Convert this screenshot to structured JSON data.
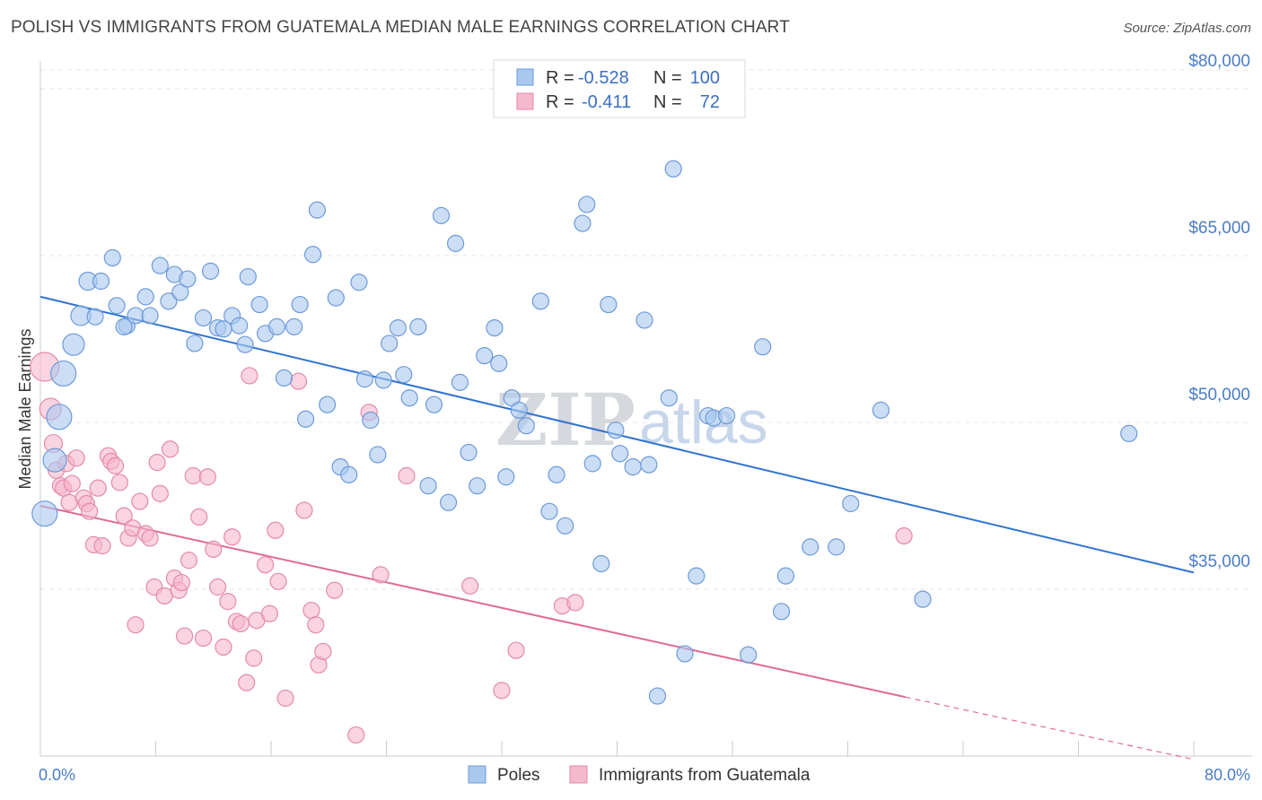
{
  "title": "POLISH VS IMMIGRANTS FROM GUATEMALA MEDIAN MALE EARNINGS CORRELATION CHART",
  "source": "Source: ZipAtlas.com",
  "watermark": {
    "zip": "ZIP",
    "atlas": "atlas"
  },
  "legend_box": [
    {
      "r_label": "R =",
      "r_value": "-0.528",
      "n_label": "N =",
      "n_value": "100",
      "color": "#a9c8f0",
      "stroke": "#6d9ad8"
    },
    {
      "r_label": "R =",
      "r_value": "-0.411",
      "n_label": "N =",
      "n_value": "72",
      "color": "#f6b8cc",
      "stroke": "#e48aa7"
    }
  ],
  "chart_data": {
    "type": "scatter",
    "title": "POLISH VS IMMIGRANTS FROM GUATEMALA MEDIAN MALE EARNINGS CORRELATION CHART",
    "xlabel": "",
    "ylabel": "Median Male Earnings",
    "xlim": [
      0,
      80
    ],
    "ylim": [
      20000,
      82500
    ],
    "y_ticks": [
      35000,
      50000,
      65000,
      80000
    ],
    "y_tick_labels": [
      "$35,000",
      "$50,000",
      "$65,000",
      "$80,000"
    ],
    "x_tick_labels": [
      "0.0%",
      "80.0%"
    ],
    "grid": true,
    "legend_position": "bottom",
    "series": [
      {
        "name": "Poles",
        "color": "#a9c8f0",
        "stroke": "#6d9ad8",
        "line_color": "#2f74d0",
        "trend": {
          "x0": 0,
          "y0": 61300,
          "x1": 80,
          "y1": 36500
        },
        "points": [
          [
            0.3,
            41800,
            14
          ],
          [
            1.0,
            46600,
            13
          ],
          [
            1.3,
            50500,
            14
          ],
          [
            1.6,
            54400,
            14
          ],
          [
            2.3,
            57000,
            12
          ],
          [
            2.8,
            59600,
            11
          ],
          [
            3.3,
            62700,
            10
          ],
          [
            4.2,
            62700,
            9
          ],
          [
            3.8,
            59500,
            9
          ],
          [
            5.0,
            64800,
            9
          ],
          [
            5.3,
            60500,
            9
          ],
          [
            6.0,
            58700,
            9
          ],
          [
            5.8,
            58600,
            9
          ],
          [
            6.6,
            59600,
            9
          ],
          [
            7.6,
            59600,
            9
          ],
          [
            7.3,
            61300,
            9
          ],
          [
            8.3,
            64100,
            9
          ],
          [
            8.9,
            60900,
            9
          ],
          [
            9.3,
            63300,
            9
          ],
          [
            9.7,
            61700,
            9
          ],
          [
            10.2,
            62900,
            9
          ],
          [
            10.7,
            57100,
            9
          ],
          [
            11.3,
            59400,
            9
          ],
          [
            11.8,
            63600,
            9
          ],
          [
            12.3,
            58500,
            9
          ],
          [
            12.7,
            58400,
            9
          ],
          [
            13.3,
            59600,
            9
          ],
          [
            13.8,
            58700,
            9
          ],
          [
            14.2,
            57000,
            9
          ],
          [
            14.4,
            63100,
            9
          ],
          [
            15.2,
            60600,
            9
          ],
          [
            15.6,
            58000,
            9
          ],
          [
            16.4,
            58600,
            9
          ],
          [
            16.9,
            54000,
            9
          ],
          [
            17.6,
            58600,
            9
          ],
          [
            18.0,
            60600,
            9
          ],
          [
            18.4,
            50300,
            9
          ],
          [
            18.9,
            65100,
            9
          ],
          [
            19.2,
            69100,
            9
          ],
          [
            19.9,
            51600,
            9
          ],
          [
            20.5,
            61200,
            9
          ],
          [
            20.8,
            46000,
            9
          ],
          [
            21.4,
            45300,
            9
          ],
          [
            22.1,
            62600,
            9
          ],
          [
            22.5,
            53900,
            9
          ],
          [
            22.9,
            50200,
            9
          ],
          [
            23.4,
            47100,
            9
          ],
          [
            23.8,
            53800,
            9
          ],
          [
            24.2,
            57100,
            9
          ],
          [
            24.8,
            58500,
            9
          ],
          [
            25.2,
            54300,
            9
          ],
          [
            25.6,
            52200,
            9
          ],
          [
            26.2,
            58600,
            9
          ],
          [
            26.9,
            44300,
            9
          ],
          [
            27.3,
            51600,
            9
          ],
          [
            27.8,
            68600,
            9
          ],
          [
            28.3,
            42800,
            9
          ],
          [
            28.8,
            66100,
            9
          ],
          [
            29.1,
            53600,
            9
          ],
          [
            29.7,
            47300,
            9
          ],
          [
            30.3,
            44300,
            9
          ],
          [
            30.8,
            56000,
            9
          ],
          [
            31.5,
            58500,
            9
          ],
          [
            31.8,
            55300,
            9
          ],
          [
            32.3,
            45100,
            9
          ],
          [
            32.7,
            52200,
            9
          ],
          [
            33.2,
            51100,
            9
          ],
          [
            33.7,
            49700,
            9
          ],
          [
            34.7,
            60900,
            9
          ],
          [
            35.3,
            42000,
            9
          ],
          [
            35.8,
            45300,
            9
          ],
          [
            36.4,
            40700,
            9
          ],
          [
            37.6,
            67900,
            9
          ],
          [
            37.9,
            69600,
            9
          ],
          [
            38.3,
            46300,
            9
          ],
          [
            38.9,
            37300,
            9
          ],
          [
            39.4,
            60600,
            9
          ],
          [
            39.9,
            49300,
            9
          ],
          [
            40.2,
            47200,
            9
          ],
          [
            41.1,
            46000,
            9
          ],
          [
            41.9,
            59200,
            9
          ],
          [
            42.2,
            46200,
            9
          ],
          [
            42.8,
            25400,
            9
          ],
          [
            43.6,
            52200,
            9
          ],
          [
            43.9,
            72800,
            9
          ],
          [
            44.7,
            29200,
            9
          ],
          [
            45.5,
            36200,
            9
          ],
          [
            46.3,
            50600,
            9
          ],
          [
            46.7,
            50400,
            9
          ],
          [
            47.6,
            50600,
            9
          ],
          [
            49.1,
            29100,
            9
          ],
          [
            50.1,
            56800,
            9
          ],
          [
            51.4,
            33000,
            9
          ],
          [
            51.7,
            36200,
            9
          ],
          [
            53.4,
            38800,
            9
          ],
          [
            55.2,
            38800,
            9
          ],
          [
            56.2,
            42700,
            9
          ],
          [
            58.3,
            51100,
            9
          ],
          [
            61.2,
            34100,
            9
          ],
          [
            75.5,
            49000,
            9
          ]
        ]
      },
      {
        "name": "Immigrants from Guatemala",
        "color": "#f6b8cc",
        "stroke": "#e48aa7",
        "line_color": "#e06a95",
        "trend": {
          "x0": 0,
          "y0": 42500,
          "x1": 60,
          "y1": 25300
        },
        "trend_dashed": {
          "x0": 60,
          "y0": 25300,
          "x1": 80,
          "y1": 19700
        },
        "points": [
          [
            0.3,
            55000,
            16
          ],
          [
            0.7,
            51200,
            12
          ],
          [
            0.9,
            48100,
            10
          ],
          [
            1.1,
            45700,
            9
          ],
          [
            1.4,
            44300,
            9
          ],
          [
            1.6,
            44100,
            9
          ],
          [
            1.8,
            46300,
            9
          ],
          [
            2.0,
            42800,
            9
          ],
          [
            2.2,
            44500,
            9
          ],
          [
            2.5,
            46800,
            9
          ],
          [
            3.0,
            43200,
            9
          ],
          [
            3.2,
            42700,
            9
          ],
          [
            3.4,
            42000,
            9
          ],
          [
            3.7,
            39000,
            9
          ],
          [
            4.0,
            44100,
            9
          ],
          [
            4.3,
            38900,
            9
          ],
          [
            4.7,
            47000,
            9
          ],
          [
            4.9,
            46500,
            9
          ],
          [
            5.2,
            46100,
            9
          ],
          [
            5.5,
            44600,
            9
          ],
          [
            5.8,
            41600,
            9
          ],
          [
            6.1,
            39600,
            9
          ],
          [
            6.4,
            40500,
            9
          ],
          [
            6.6,
            31800,
            9
          ],
          [
            6.9,
            42900,
            9
          ],
          [
            7.3,
            40000,
            9
          ],
          [
            7.6,
            39600,
            9
          ],
          [
            7.9,
            35200,
            9
          ],
          [
            8.1,
            46400,
            9
          ],
          [
            8.3,
            43600,
            9
          ],
          [
            8.6,
            34400,
            9
          ],
          [
            9.0,
            47600,
            9
          ],
          [
            9.3,
            36000,
            9
          ],
          [
            9.6,
            34900,
            9
          ],
          [
            9.8,
            35600,
            9
          ],
          [
            10.0,
            30800,
            9
          ],
          [
            10.3,
            37600,
            9
          ],
          [
            10.6,
            45200,
            9
          ],
          [
            11.0,
            41500,
            9
          ],
          [
            11.3,
            30600,
            9
          ],
          [
            11.6,
            45100,
            9
          ],
          [
            12.0,
            38600,
            9
          ],
          [
            12.3,
            35200,
            9
          ],
          [
            12.7,
            29800,
            9
          ],
          [
            13.0,
            33900,
            9
          ],
          [
            13.3,
            39700,
            9
          ],
          [
            13.6,
            32100,
            9
          ],
          [
            13.9,
            31900,
            9
          ],
          [
            14.3,
            26600,
            9
          ],
          [
            14.5,
            54200,
            9
          ],
          [
            14.8,
            28800,
            9
          ],
          [
            15.0,
            32200,
            9
          ],
          [
            15.6,
            37200,
            9
          ],
          [
            15.9,
            32800,
            9
          ],
          [
            16.3,
            40300,
            9
          ],
          [
            16.5,
            35700,
            9
          ],
          [
            17.0,
            25200,
            9
          ],
          [
            17.9,
            53700,
            9
          ],
          [
            18.3,
            42100,
            9
          ],
          [
            18.8,
            33100,
            9
          ],
          [
            19.1,
            31800,
            9
          ],
          [
            19.3,
            28200,
            9
          ],
          [
            19.6,
            29400,
            9
          ],
          [
            20.4,
            34900,
            9
          ],
          [
            21.9,
            21900,
            9
          ],
          [
            22.8,
            50900,
            9
          ],
          [
            23.6,
            36300,
            9
          ],
          [
            25.4,
            45200,
            9
          ],
          [
            29.8,
            35300,
            9
          ],
          [
            32.0,
            25900,
            9
          ],
          [
            33.0,
            29500,
            9
          ],
          [
            36.2,
            33500,
            9
          ],
          [
            37.1,
            33800,
            9
          ],
          [
            59.9,
            39800,
            9
          ]
        ]
      }
    ]
  }
}
